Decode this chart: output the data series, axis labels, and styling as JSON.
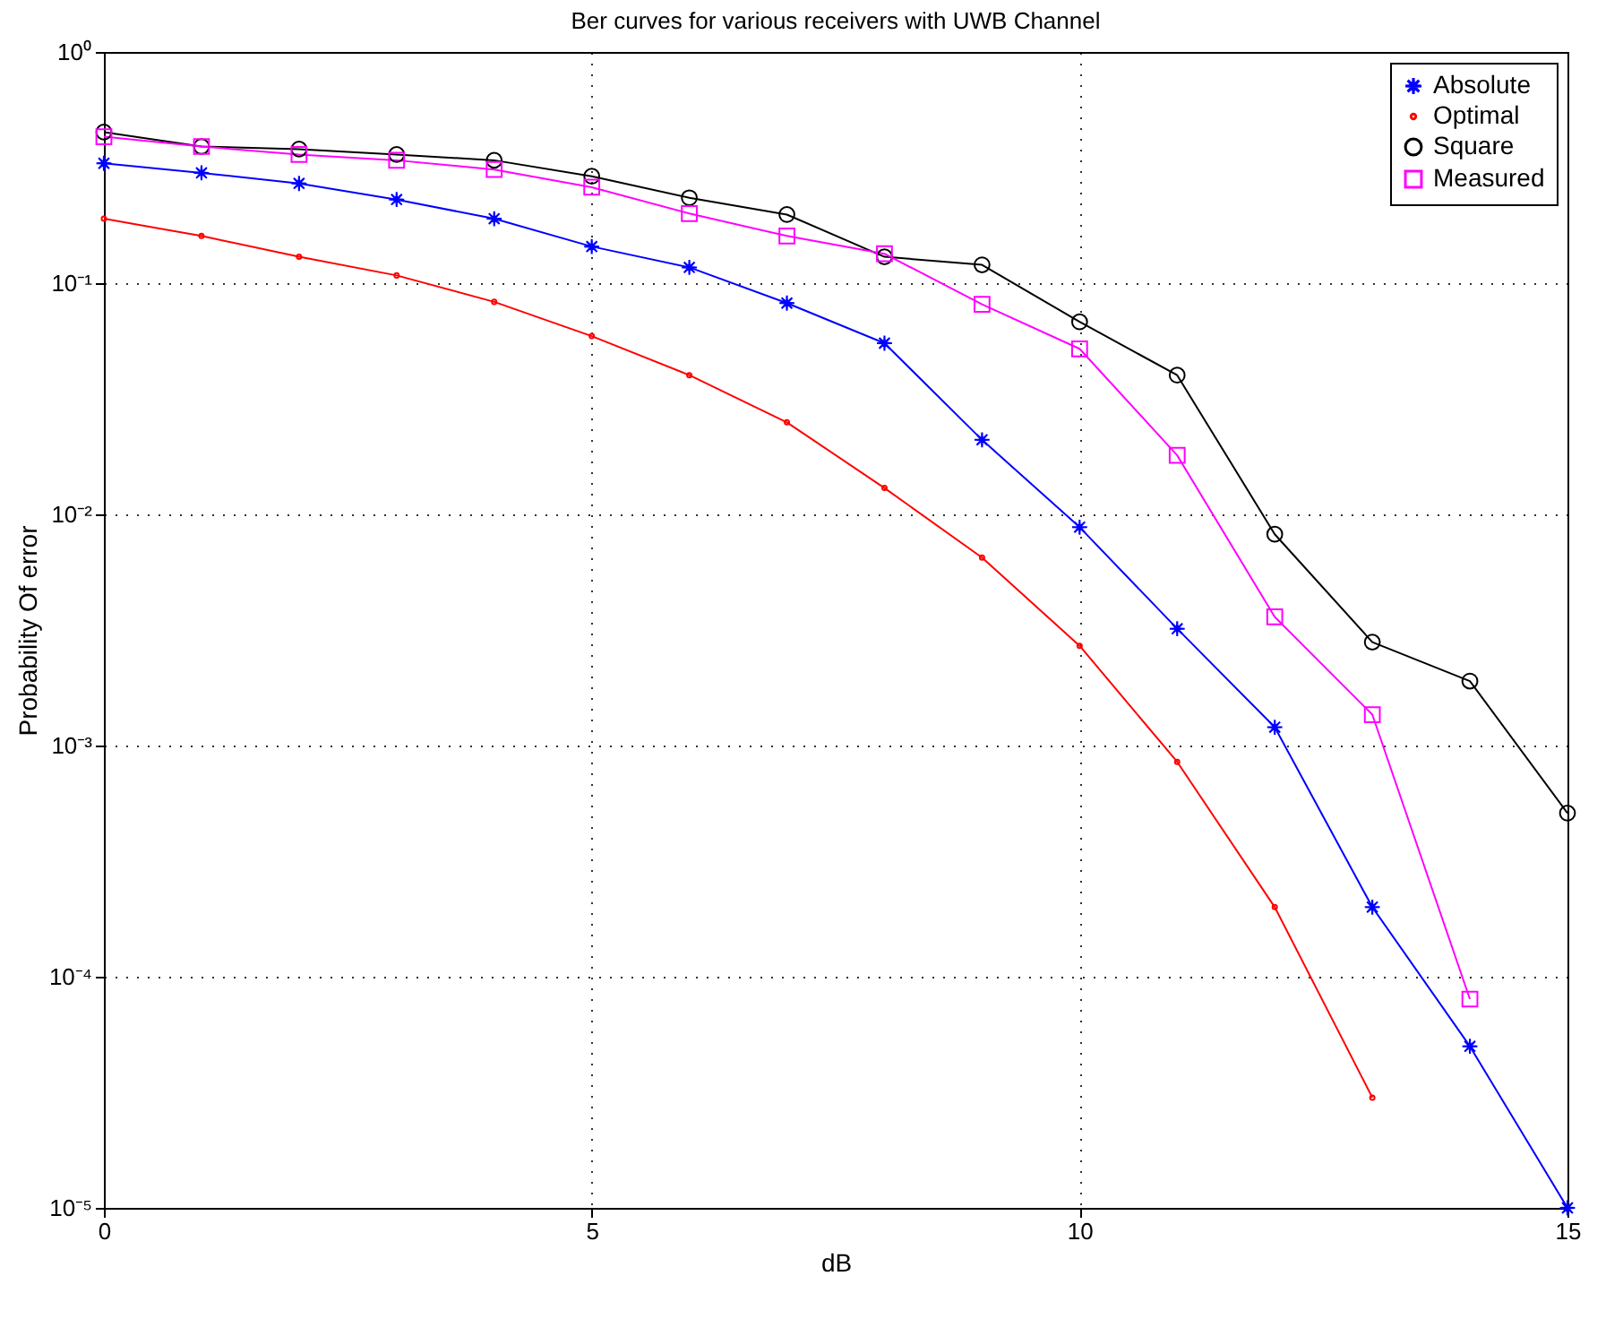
{
  "chart_data": {
    "type": "line",
    "title": "Ber curves for various receivers with UWB Channel",
    "xlabel": "dB",
    "ylabel": "Probability Of error",
    "x": [
      0,
      1,
      2,
      3,
      4,
      5,
      6,
      7,
      8,
      9,
      10,
      11,
      12,
      13,
      14,
      15
    ],
    "series": [
      {
        "name": "Absolute",
        "color": "#0000ff",
        "marker": "star",
        "values": [
          0.33,
          0.3,
          0.27,
          0.23,
          0.19,
          0.144,
          0.117,
          0.082,
          0.055,
          0.021,
          0.0088,
          0.0032,
          0.0012,
          0.0002,
          5e-05,
          1e-05
        ]
      },
      {
        "name": "Optimal",
        "color": "#ff0000",
        "marker": "dot",
        "values": [
          0.19,
          0.16,
          0.13,
          0.108,
          0.083,
          0.059,
          0.04,
          0.025,
          0.013,
          0.0065,
          0.0027,
          0.00085,
          0.0002,
          3e-05,
          null,
          null
        ]
      },
      {
        "name": "Square",
        "color": "#000000",
        "marker": "circle",
        "values": [
          0.45,
          0.39,
          0.38,
          0.36,
          0.34,
          0.29,
          0.234,
          0.198,
          0.13,
          0.12,
          0.068,
          0.04,
          0.0082,
          0.0028,
          0.0019,
          0.00051
        ]
      },
      {
        "name": "Measured",
        "color": "#ff00ff",
        "marker": "square",
        "values": [
          0.43,
          0.39,
          0.36,
          0.34,
          0.31,
          0.26,
          0.2,
          0.16,
          0.134,
          0.081,
          0.052,
          0.018,
          0.0036,
          0.00136,
          8e-05,
          null
        ]
      }
    ],
    "xlim": [
      0,
      15
    ],
    "xticks": [
      0,
      5,
      10,
      15
    ],
    "ylim": [
      1e-05,
      1
    ],
    "yticks": [
      {
        "value": 1,
        "label": "10⁰"
      },
      {
        "value": 0.1,
        "label": "10⁻¹"
      },
      {
        "value": 0.01,
        "label": "10⁻²"
      },
      {
        "value": 0.001,
        "label": "10⁻³"
      },
      {
        "value": 0.0001,
        "label": "10⁻⁴"
      },
      {
        "value": 1e-05,
        "label": "10⁻⁵"
      }
    ],
    "log": "y",
    "grid": true,
    "legend": "top right",
    "line_style": "solid"
  }
}
